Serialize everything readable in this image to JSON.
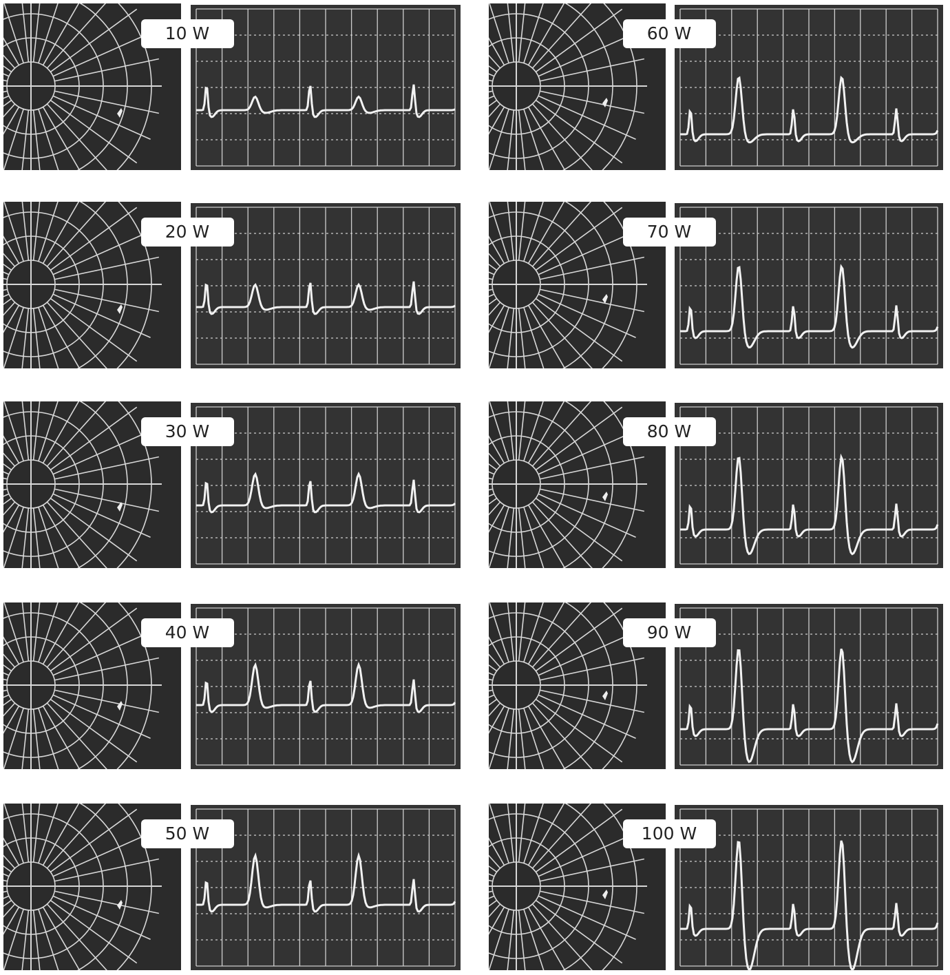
{
  "panels": [
    {
      "label": "10 W"
    },
    {
      "label": "20 W"
    },
    {
      "label": "30 W"
    },
    {
      "label": "40 W"
    },
    {
      "label": "50 W"
    },
    {
      "label": "60 W"
    },
    {
      "label": "70 W"
    },
    {
      "label": "80 W"
    },
    {
      "label": "90 W"
    },
    {
      "label": "100 W"
    }
  ]
}
